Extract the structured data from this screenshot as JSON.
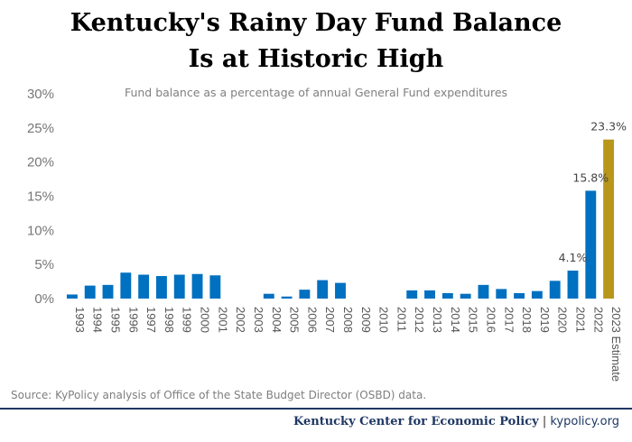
{
  "title_line1": "Kentucky's Rainy Day Fund Balance",
  "title_line2": "Is at Historic High",
  "source": "Source: KyPolicy analysis of Office of the State Budget Director (OSBD) data.",
  "footer": {
    "org": "Kentucky Center for Economic Policy",
    "separator": " | ",
    "site": "kypolicy.org"
  },
  "colors": {
    "bar": "#0070c0",
    "estimate": "#b8961b",
    "rule": "#1f3864"
  },
  "chart_data": {
    "type": "bar",
    "subtitle": "Fund balance as a percentage of annual General Fund expenditures",
    "ylim": [
      0,
      30
    ],
    "yticks": [
      0,
      5,
      10,
      15,
      20,
      25,
      30
    ],
    "ytick_labels": [
      "0%",
      "5%",
      "10%",
      "15%",
      "20%",
      "25%",
      "30%"
    ],
    "grid": false,
    "categories": [
      "1993",
      "1994",
      "1995",
      "1996",
      "1997",
      "1998",
      "1999",
      "2000",
      "2001",
      "2002",
      "2003",
      "2004",
      "2005",
      "2006",
      "2007",
      "2008",
      "2009",
      "2010",
      "2011",
      "2012",
      "2013",
      "2014",
      "2015",
      "2016",
      "2017",
      "2018",
      "2019",
      "2020",
      "2021",
      "2022",
      "2023 Estimate"
    ],
    "values": [
      0.6,
      1.9,
      2.0,
      3.8,
      3.5,
      3.3,
      3.5,
      3.6,
      3.4,
      0,
      0,
      0.7,
      0.3,
      1.3,
      2.7,
      2.3,
      0,
      0,
      0,
      1.2,
      1.2,
      0.8,
      0.7,
      2.0,
      1.4,
      0.8,
      1.1,
      2.6,
      4.1,
      15.8,
      23.3
    ],
    "data_labels": [
      {
        "index": 28,
        "text": "4.1%"
      },
      {
        "index": 29,
        "text": "15.8%"
      },
      {
        "index": 30,
        "text": "23.3%"
      }
    ]
  }
}
